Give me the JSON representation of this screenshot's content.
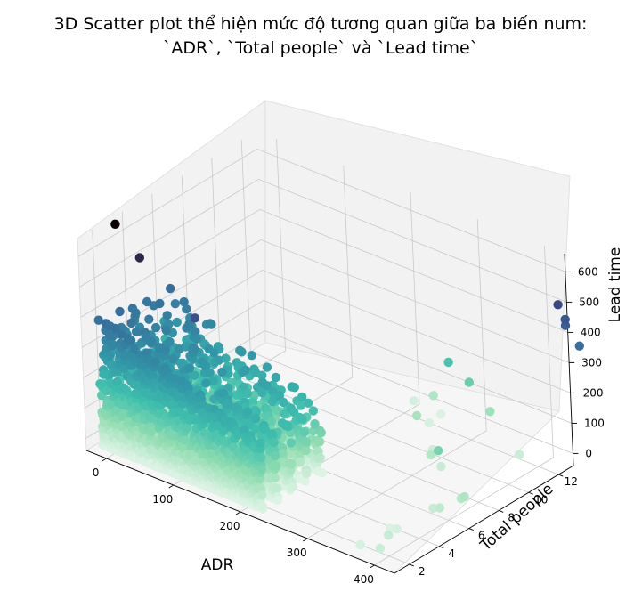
{
  "chart_data": {
    "type": "scatter",
    "title_line1": "3D Scatter plot thể hiện mức độ tương quan giữa ba biến num:",
    "title_line2": "`ADR`, `Total people` và `Lead time`",
    "xlabel": "ADR",
    "ylabel": "Total people",
    "zlabel": "Lead time",
    "xticks": [
      "0",
      "100",
      "200",
      "300",
      "400"
    ],
    "yticks": [
      "2",
      "4",
      "6",
      "8",
      "10",
      "12"
    ],
    "zticks": [
      "0",
      "100",
      "200",
      "300",
      "400",
      "500",
      "600"
    ],
    "xlim": [
      -30,
      430
    ],
    "ylim": [
      1,
      13
    ],
    "zlim": [
      -40,
      660
    ],
    "colormap": "mako_r (colour encodes Lead time)",
    "colors": [
      "#ddf3e4",
      "#8fdcb0",
      "#3fbfae",
      "#3298a8",
      "#36739d",
      "#3b4f8e",
      "#37305f",
      "#0b0405"
    ],
    "bulk_description": "Dense cloud of several thousand bookings: ADR roughly 0–250, Total people 1–5, Lead time 0–450",
    "outliers": [
      {
        "adr": 5,
        "people": 2,
        "lead": 709
      },
      {
        "adr": 40,
        "people": 2,
        "lead": 629
      },
      {
        "adr": 120,
        "people": 2,
        "lead": 500
      },
      {
        "adr": 215,
        "people": 12,
        "lead": 14
      },
      {
        "adr": 245,
        "people": 12,
        "lead": 58
      },
      {
        "adr": 255,
        "people": 12,
        "lead": 5
      },
      {
        "adr": 260,
        "people": 11,
        "lead": 10
      },
      {
        "adr": 265,
        "people": 10,
        "lead": 68
      },
      {
        "adr": 270,
        "people": 12,
        "lead": 190
      },
      {
        "adr": 300,
        "people": 12,
        "lead": 150
      },
      {
        "adr": 310,
        "people": 9,
        "lead": 25
      },
      {
        "adr": 330,
        "people": 8,
        "lead": 55
      },
      {
        "adr": 345,
        "people": 8,
        "lead": 30
      },
      {
        "adr": 380,
        "people": 3,
        "lead": 5
      },
      {
        "adr": 390,
        "people": 3,
        "lead": 12
      },
      {
        "adr": 400,
        "people": 5,
        "lead": 30
      },
      {
        "adr": 410,
        "people": 5,
        "lead": 40
      },
      {
        "adr": 420,
        "people": 6,
        "lead": 50
      },
      {
        "adr": 425,
        "people": 6,
        "lead": 60
      },
      {
        "adr": 365,
        "people": 7,
        "lead": 130
      },
      {
        "adr": 395,
        "people": 11,
        "lead": 25
      },
      {
        "adr": 330,
        "people": 12,
        "lead": 80
      },
      {
        "adr": 380,
        "people": 1,
        "lead": 10
      },
      {
        "adr": 400,
        "people": 2,
        "lead": 30
      },
      {
        "adr": 410,
        "people": 1,
        "lead": 25
      },
      {
        "adr": 440,
        "people": 12,
        "lead": 530
      },
      {
        "adr": 450,
        "people": 12,
        "lead": 470
      },
      {
        "adr": 450,
        "people": 12,
        "lead": 490
      },
      {
        "adr": 470,
        "people": 12,
        "lead": 420
      }
    ]
  }
}
